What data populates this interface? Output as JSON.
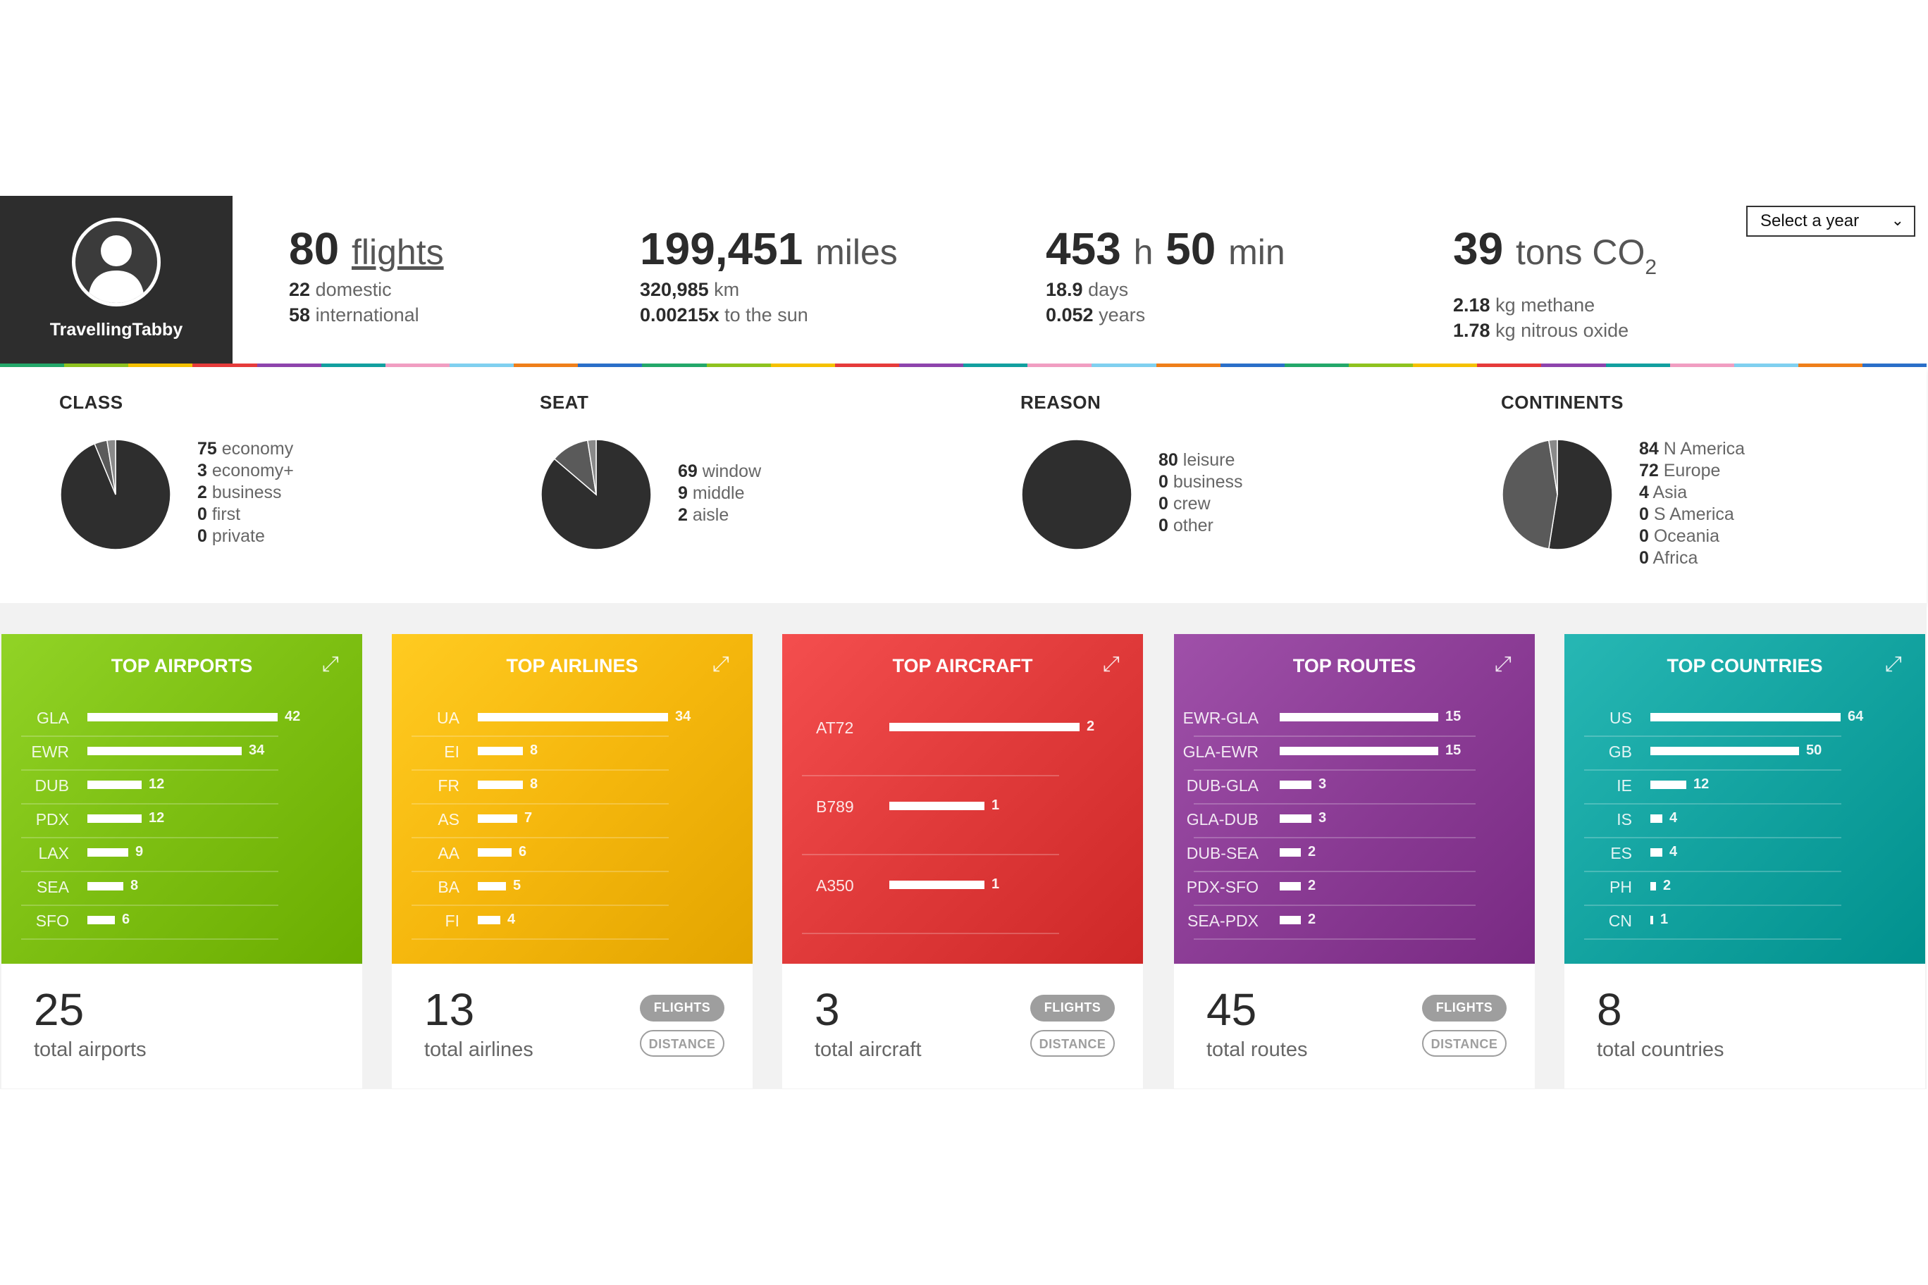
{
  "profile": {
    "username": "TravellingTabby",
    "icon": "user-silhouette-icon"
  },
  "year_select": {
    "label": "Select a year",
    "icon": "chevron-down-icon"
  },
  "stats": {
    "flights": {
      "value": "80",
      "unit": "flights",
      "domestic_n": "22",
      "domestic_t": "domestic",
      "intl_n": "58",
      "intl_t": "international"
    },
    "distance": {
      "value": "199,451",
      "unit": "miles",
      "km_n": "320,985",
      "km_t": "km",
      "sun_n": "0.00215x",
      "sun_t": "to the sun"
    },
    "time": {
      "hours": "453",
      "h": "h",
      "mins": "50",
      "min": "min",
      "days_n": "18.9",
      "days_t": "days",
      "years_n": "0.052",
      "years_t": "years"
    },
    "co2": {
      "value": "39",
      "unit": "tons CO",
      "sub": "2",
      "methane_n": "2.18",
      "methane_t": "kg methane",
      "n2o_n": "1.78",
      "n2o_t": "kg nitrous oxide"
    }
  },
  "colors": {
    "rainbow": [
      "#23a86a",
      "#8fc31f",
      "#f5c100",
      "#e63b3b",
      "#8e44ad",
      "#12a0a0",
      "#f19ec2",
      "#80d0f0",
      "#ef7f1a",
      "#2a6fc9"
    ],
    "airports": "#7dbf12",
    "airlines": "#f5b70d",
    "aircraft": "#e03a3a",
    "routes": "#8b3c95",
    "countries": "#13a3a0",
    "pie_dark": "#2e2e2e",
    "pie_mid": "#5a5a5a",
    "pie_light": "#8a8a8a"
  },
  "breakdown": {
    "class": {
      "title": "CLASS",
      "items": [
        {
          "n": "75",
          "t": "economy",
          "v": 75
        },
        {
          "n": "3",
          "t": "economy+",
          "v": 3
        },
        {
          "n": "2",
          "t": "business",
          "v": 2
        },
        {
          "n": "0",
          "t": "first",
          "v": 0
        },
        {
          "n": "0",
          "t": "private",
          "v": 0
        }
      ]
    },
    "seat": {
      "title": "SEAT",
      "items": [
        {
          "n": "69",
          "t": "window",
          "v": 69
        },
        {
          "n": "9",
          "t": "middle",
          "v": 9
        },
        {
          "n": "2",
          "t": "aisle",
          "v": 2
        }
      ]
    },
    "reason": {
      "title": "REASON",
      "items": [
        {
          "n": "80",
          "t": "leisure",
          "v": 80
        },
        {
          "n": "0",
          "t": "business",
          "v": 0
        },
        {
          "n": "0",
          "t": "crew",
          "v": 0
        },
        {
          "n": "0",
          "t": "other",
          "v": 0
        }
      ]
    },
    "continents": {
      "title": "CONTINENTS",
      "items": [
        {
          "n": "84",
          "t": "N America",
          "v": 84
        },
        {
          "n": "72",
          "t": "Europe",
          "v": 72
        },
        {
          "n": "4",
          "t": "Asia",
          "v": 4
        },
        {
          "n": "0",
          "t": "S America",
          "v": 0
        },
        {
          "n": "0",
          "t": "Oceania",
          "v": 0
        },
        {
          "n": "0",
          "t": "Africa",
          "v": 0
        }
      ]
    }
  },
  "cards": {
    "airports": {
      "title": "TOP AIRPORTS",
      "total": "25",
      "total_label": "total airports",
      "max": 42,
      "rows": [
        {
          "l": "GLA",
          "v": 42
        },
        {
          "l": "EWR",
          "v": 34
        },
        {
          "l": "DUB",
          "v": 12
        },
        {
          "l": "PDX",
          "v": 12
        },
        {
          "l": "LAX",
          "v": 9
        },
        {
          "l": "SEA",
          "v": 8
        },
        {
          "l": "SFO",
          "v": 6
        }
      ]
    },
    "airlines": {
      "title": "TOP AIRLINES",
      "total": "13",
      "total_label": "total airlines",
      "max": 34,
      "flights_btn": "FLIGHTS",
      "distance_btn": "DISTANCE",
      "rows": [
        {
          "l": "UA",
          "v": 34
        },
        {
          "l": "EI",
          "v": 8
        },
        {
          "l": "FR",
          "v": 8
        },
        {
          "l": "AS",
          "v": 7
        },
        {
          "l": "AA",
          "v": 6
        },
        {
          "l": "BA",
          "v": 5
        },
        {
          "l": "FI",
          "v": 4
        }
      ]
    },
    "aircraft": {
      "title": "TOP AIRCRAFT",
      "total": "3",
      "total_label": "total aircraft",
      "max": 2,
      "flights_btn": "FLIGHTS",
      "distance_btn": "DISTANCE",
      "rows": [
        {
          "l": "AT72",
          "v": 2
        },
        {
          "l": "B789",
          "v": 1
        },
        {
          "l": "A350",
          "v": 1
        }
      ]
    },
    "routes": {
      "title": "TOP ROUTES",
      "total": "45",
      "total_label": "total routes",
      "max": 15,
      "flights_btn": "FLIGHTS",
      "distance_btn": "DISTANCE",
      "rows": [
        {
          "l": "EWR-GLA",
          "v": 15
        },
        {
          "l": "GLA-EWR",
          "v": 15
        },
        {
          "l": "DUB-GLA",
          "v": 3
        },
        {
          "l": "GLA-DUB",
          "v": 3
        },
        {
          "l": "DUB-SEA",
          "v": 2
        },
        {
          "l": "PDX-SFO",
          "v": 2
        },
        {
          "l": "SEA-PDX",
          "v": 2
        }
      ]
    },
    "countries": {
      "title": "TOP COUNTRIES",
      "total": "8",
      "total_label": "total countries",
      "max": 64,
      "rows": [
        {
          "l": "US",
          "v": 64
        },
        {
          "l": "GB",
          "v": 50
        },
        {
          "l": "IE",
          "v": 12
        },
        {
          "l": "IS",
          "v": 4
        },
        {
          "l": "ES",
          "v": 4
        },
        {
          "l": "PH",
          "v": 2
        },
        {
          "l": "CN",
          "v": 1
        }
      ]
    }
  }
}
